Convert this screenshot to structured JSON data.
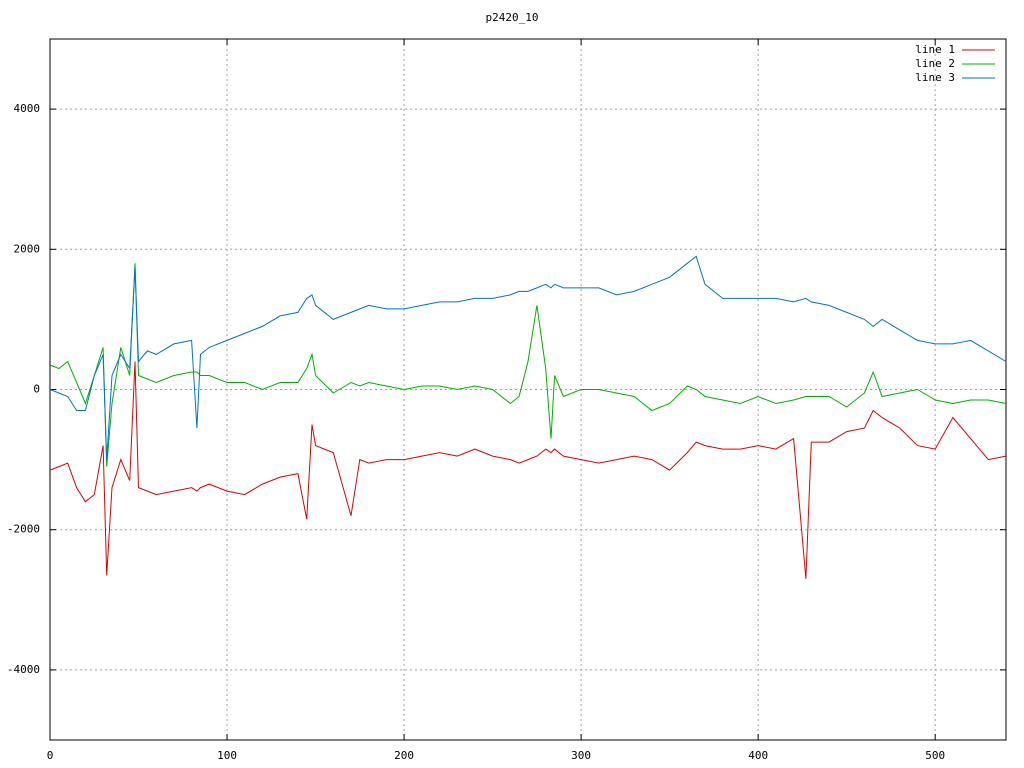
{
  "chart_data": {
    "type": "line",
    "title": "p2420_10",
    "x": [
      0,
      5,
      10,
      15,
      20,
      25,
      30,
      32,
      35,
      40,
      45,
      48,
      50,
      55,
      60,
      70,
      80,
      83,
      85,
      90,
      100,
      110,
      120,
      130,
      140,
      145,
      148,
      150,
      160,
      170,
      175,
      180,
      190,
      200,
      210,
      220,
      230,
      240,
      250,
      260,
      265,
      270,
      275,
      280,
      283,
      285,
      290,
      300,
      310,
      320,
      330,
      340,
      350,
      360,
      365,
      370,
      380,
      390,
      400,
      410,
      420,
      427,
      430,
      440,
      450,
      460,
      465,
      470,
      480,
      490,
      500,
      510,
      520,
      530,
      540
    ],
    "series": [
      {
        "name": "line 1",
        "color": "#dd0000",
        "values": [
          -1150,
          -1100,
          -1050,
          -1400,
          -1600,
          -1500,
          -800,
          -2650,
          -1400,
          -1000,
          -1300,
          400,
          -1400,
          -1450,
          -1500,
          -1450,
          -1400,
          -1450,
          -1400,
          -1350,
          -1450,
          -1500,
          -1350,
          -1250,
          -1200,
          -1850,
          -500,
          -800,
          -900,
          -1800,
          -1000,
          -1050,
          -1000,
          -1000,
          -950,
          -900,
          -950,
          -850,
          -950,
          -1000,
          -1050,
          -1000,
          -950,
          -850,
          -900,
          -850,
          -950,
          -1000,
          -1050,
          -1000,
          -950,
          -1000,
          -1150,
          -900,
          -750,
          -800,
          -850,
          -850,
          -800,
          -850,
          -700,
          -2700,
          -750,
          -750,
          -600,
          -550,
          -300,
          -400,
          -550,
          -800,
          -850,
          -400,
          -700,
          -1000,
          -950
        ]
      },
      {
        "name": "line 2",
        "color": "#00b000",
        "values": [
          350,
          300,
          400,
          100,
          -200,
          200,
          600,
          -1100,
          -200,
          600,
          200,
          1800,
          200,
          150,
          100,
          200,
          250,
          250,
          200,
          200,
          100,
          100,
          0,
          100,
          100,
          300,
          500,
          200,
          -50,
          100,
          50,
          100,
          50,
          0,
          50,
          50,
          0,
          50,
          0,
          -200,
          -100,
          400,
          1200,
          300,
          -700,
          200,
          -100,
          0,
          0,
          -50,
          -100,
          -300,
          -200,
          50,
          0,
          -100,
          -150,
          -200,
          -100,
          -200,
          -150,
          -100,
          -100,
          -100,
          -250,
          -50,
          250,
          -100,
          -50,
          0,
          -150,
          -200,
          -150,
          -150,
          -200
        ]
      },
      {
        "name": "line 3",
        "color": "#0072d0",
        "values": [
          0,
          -50,
          -100,
          -300,
          -300,
          200,
          500,
          -1000,
          200,
          500,
          300,
          1750,
          400,
          550,
          500,
          650,
          700,
          -550,
          500,
          600,
          700,
          800,
          900,
          1050,
          1100,
          1300,
          1350,
          1200,
          1000,
          1100,
          1150,
          1200,
          1150,
          1150,
          1200,
          1250,
          1250,
          1300,
          1300,
          1350,
          1400,
          1400,
          1450,
          1500,
          1450,
          1500,
          1450,
          1450,
          1450,
          1350,
          1400,
          1500,
          1600,
          1800,
          1900,
          1500,
          1300,
          1300,
          1300,
          1300,
          1250,
          1300,
          1250,
          1200,
          1100,
          1000,
          900,
          1000,
          850,
          700,
          650,
          650,
          700,
          550,
          400
        ]
      }
    ],
    "xlim": [
      0,
      540
    ],
    "xticks": [
      0,
      100,
      200,
      300,
      400,
      500
    ],
    "ylim": [
      -5000,
      5000
    ],
    "yticks": [
      -4000,
      -2000,
      0,
      2000,
      4000
    ],
    "grid": true,
    "legend": "top-right"
  }
}
